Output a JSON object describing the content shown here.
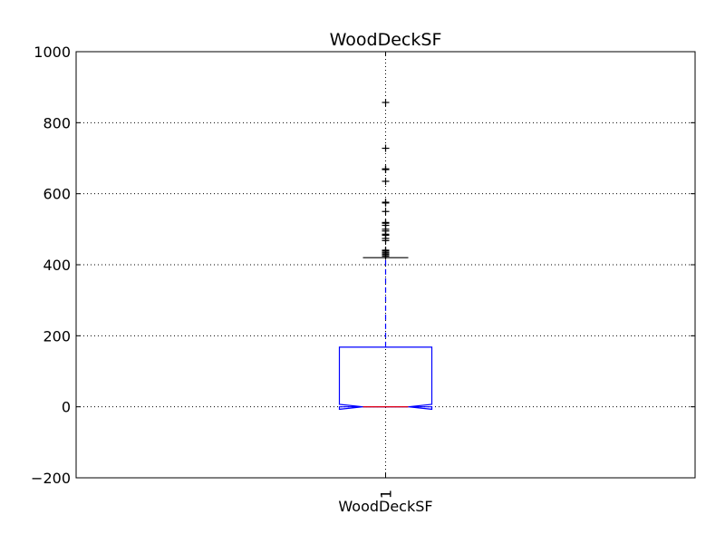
{
  "chart_data": {
    "type": "box",
    "title": "WoodDeckSF",
    "xlabel": "WoodDeckSF",
    "ylabel": "",
    "ylim": [
      -200,
      1000
    ],
    "yticks": [
      -200,
      0,
      200,
      400,
      600,
      800,
      1000
    ],
    "ytick_labels": [
      "−200",
      "0",
      "200",
      "400",
      "600",
      "800",
      "1000"
    ],
    "xtick_labels": [
      "1"
    ],
    "grid": true,
    "notched": true,
    "series": [
      {
        "name": "WoodDeckSF",
        "position": 1,
        "q1": 0,
        "median": 0,
        "q3": 168,
        "notch_low": -7,
        "notch_high": 7,
        "whisker_low": 0,
        "whisker_high": 420,
        "outliers": [
          424,
          428,
          431,
          435,
          439,
          441,
          468,
          474,
          483,
          486,
          495,
          500,
          511,
          517,
          519,
          550,
          574,
          576,
          635,
          668,
          670,
          728,
          857
        ]
      }
    ],
    "colors": {
      "box": "#0000ff",
      "median": "#ff0000",
      "whisker": "#0000ff",
      "cap": "#000000",
      "outlier": "#000000",
      "grid": "#000000"
    }
  }
}
